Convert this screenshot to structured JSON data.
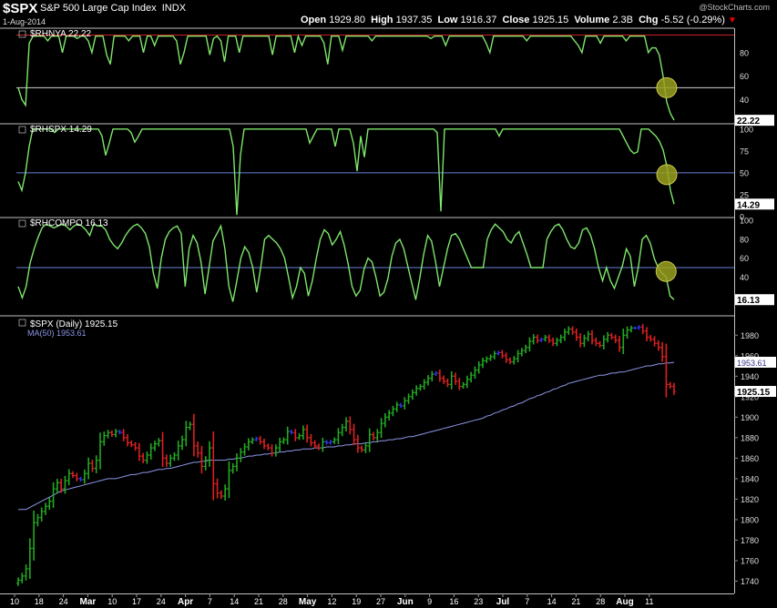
{
  "header": {
    "symbol": "$SPX",
    "description": "S&P 500 Large Cap Index",
    "exchange": "INDX",
    "date": "1-Aug-2014",
    "open_label": "Open",
    "open": "1929.80",
    "high_label": "High",
    "high": "1937.35",
    "low_label": "Low",
    "low": "1916.37",
    "close_label": "Close",
    "close": "1925.15",
    "volume_label": "Volume",
    "volume": "2.3B",
    "chg_label": "Chg",
    "chg": "-5.52 (-0.29%)",
    "brand": "@StockCharts.com"
  },
  "colors": {
    "background": "#000000",
    "indicator_line": "#7ee66b",
    "upper_reference": "#cc2222",
    "panel_border": "#c0c0c0",
    "mid_reference": "#6b7fd8",
    "up_bar": "#22aa22",
    "down_bar": "#dd2020",
    "neutral_bar": "#3333ee",
    "ma_line": "#8c96e6",
    "highlight": "#9aa020"
  },
  "x_axis": {
    "tick_labels": [
      "10",
      "18",
      "24",
      "Mar",
      "10",
      "17",
      "24",
      "Apr",
      "7",
      "14",
      "21",
      "28",
      "May",
      "12",
      "19",
      "27",
      "Jun",
      "9",
      "16",
      "23",
      "Jul",
      "7",
      "14",
      "21",
      "28",
      "Aug",
      "11"
    ]
  },
  "chart_data": [
    {
      "type": "line",
      "title": "$RHNYA 22.22",
      "series": [
        {
          "name": "$RHNYA",
          "last_value": "22.22",
          "values": [
            50,
            40,
            35,
            88,
            94,
            94,
            94,
            94,
            90,
            94,
            94,
            94,
            80,
            94,
            94,
            94,
            92,
            94,
            94,
            90,
            80,
            94,
            94,
            94,
            78,
            70,
            94,
            94,
            94,
            94,
            90,
            94,
            94,
            94,
            80,
            94,
            94,
            86,
            94,
            94,
            94,
            94,
            94,
            90,
            70,
            80,
            94,
            94,
            94,
            94,
            94,
            94,
            78,
            92,
            94,
            90,
            72,
            94,
            94,
            94,
            80,
            94,
            94,
            94,
            94,
            94,
            94,
            94,
            94,
            78,
            94,
            94,
            94,
            94,
            94,
            80,
            94,
            86,
            94,
            94,
            94,
            94,
            94,
            88,
            70,
            94,
            94,
            94,
            82,
            94,
            94,
            94,
            94,
            94,
            94,
            94,
            90,
            94,
            94,
            94,
            94,
            94,
            94,
            94,
            94,
            94,
            94,
            94,
            94,
            94,
            94,
            94,
            92,
            94,
            94,
            94,
            86,
            94,
            94,
            94,
            94,
            94,
            94,
            94,
            94,
            94,
            94,
            88,
            80,
            94,
            94,
            94,
            94,
            94,
            94,
            94,
            94,
            94,
            90,
            94,
            94,
            94,
            94,
            94,
            94,
            94,
            94,
            94,
            94,
            94,
            94,
            90,
            86,
            80,
            94,
            94,
            94,
            94,
            88,
            94,
            94,
            94,
            94,
            94,
            94,
            90,
            94,
            94,
            94,
            94,
            94,
            80,
            84,
            84,
            78,
            60,
            38,
            28,
            22.22
          ]
        }
      ],
      "ylim": [
        20,
        100
      ],
      "y_ticks": [
        "80",
        "60",
        "40"
      ],
      "upper_reference": 95,
      "mid_reference": 50,
      "highlight_value": 50
    },
    {
      "type": "line",
      "title": "$RHSPX 14.29",
      "series": [
        {
          "name": "$RHSPX",
          "last_value": "14.29",
          "values": [
            40,
            30,
            50,
            80,
            100,
            100,
            100,
            100,
            100,
            100,
            96,
            100,
            100,
            100,
            100,
            100,
            100,
            100,
            100,
            100,
            100,
            100,
            100,
            92,
            70,
            84,
            100,
            100,
            100,
            100,
            100,
            96,
            85,
            92,
            100,
            100,
            100,
            100,
            100,
            100,
            100,
            100,
            100,
            100,
            100,
            100,
            100,
            100,
            100,
            100,
            100,
            100,
            100,
            100,
            100,
            100,
            100,
            100,
            100,
            80,
            2,
            70,
            100,
            100,
            100,
            100,
            100,
            100,
            100,
            100,
            100,
            100,
            100,
            100,
            100,
            100,
            100,
            100,
            100,
            100,
            84,
            92,
            100,
            100,
            100,
            100,
            100,
            80,
            100,
            100,
            100,
            100,
            84,
            52,
            92,
            68,
            100,
            100,
            100,
            100,
            100,
            100,
            100,
            100,
            100,
            100,
            100,
            100,
            100,
            100,
            100,
            100,
            100,
            100,
            100,
            96,
            6,
            100,
            100,
            100,
            100,
            100,
            100,
            100,
            100,
            100,
            100,
            100,
            100,
            100,
            100,
            100,
            92,
            100,
            100,
            100,
            100,
            100,
            100,
            100,
            100,
            100,
            100,
            100,
            100,
            100,
            100,
            100,
            100,
            100,
            100,
            100,
            100,
            100,
            100,
            100,
            100,
            100,
            100,
            100,
            100,
            100,
            100,
            100,
            100,
            100,
            92,
            84,
            76,
            72,
            74,
            100,
            100,
            100,
            96,
            92,
            86,
            76,
            58,
            30,
            14.29
          ]
        }
      ],
      "ylim": [
        0,
        105
      ],
      "y_ticks": [
        "100",
        "75",
        "50",
        "25",
        "0"
      ],
      "mid_reference": 50,
      "highlight_value": 48
    },
    {
      "type": "line",
      "title": "$RHCOMPO 16.13",
      "series": [
        {
          "name": "$RHCOMPO",
          "last_value": "16.13",
          "values": [
            30,
            18,
            30,
            55,
            70,
            82,
            92,
            96,
            94,
            92,
            94,
            96,
            94,
            90,
            94,
            96,
            94,
            90,
            84,
            96,
            94,
            94,
            90,
            80,
            74,
            70,
            76,
            84,
            90,
            94,
            96,
            92,
            86,
            72,
            44,
            28,
            60,
            80,
            88,
            92,
            94,
            86,
            30,
            70,
            84,
            76,
            56,
            22,
            50,
            78,
            86,
            94,
            70,
            30,
            14,
            36,
            60,
            72,
            66,
            50,
            24,
            50,
            80,
            84,
            80,
            76,
            70,
            60,
            40,
            18,
            30,
            50,
            44,
            20,
            36,
            60,
            80,
            90,
            86,
            74,
            80,
            88,
            74,
            54,
            30,
            20,
            26,
            48,
            60,
            56,
            40,
            20,
            24,
            38,
            62,
            76,
            80,
            70,
            52,
            34,
            16,
            38,
            64,
            84,
            78,
            56,
            30,
            50,
            70,
            84,
            86,
            80,
            70,
            60,
            50,
            50,
            50,
            50,
            80,
            90,
            96,
            92,
            88,
            80,
            76,
            84,
            88,
            76,
            64,
            50,
            50,
            50,
            50,
            80,
            88,
            94,
            96,
            90,
            80,
            72,
            70,
            76,
            90,
            92,
            84,
            70,
            50,
            36,
            50,
            36,
            28,
            40,
            52,
            70,
            62,
            30,
            50,
            80,
            84,
            76,
            60,
            50,
            44,
            40,
            20,
            16.13
          ]
        }
      ],
      "ylim": [
        0,
        102
      ],
      "y_ticks": [
        "100",
        "80",
        "60",
        "40"
      ],
      "mid_reference": 50,
      "highlight_value": 46
    },
    {
      "type": "bar",
      "title": "$SPX (Daily) 1925.15",
      "ma_label": "MA(50) 1953.61",
      "ma_last": "1953.61",
      "price_last": "1925.15",
      "ylim": [
        1728,
        1998
      ],
      "y_ticks": [
        "1980",
        "1960",
        "1940",
        "1920",
        "1900",
        "1880",
        "1860",
        "1840",
        "1820",
        "1800",
        "1780",
        "1760",
        "1740"
      ],
      "series": [
        {
          "name": "$SPX",
          "values": [
            1741,
            1745,
            1752,
            1772,
            1797,
            1802,
            1808,
            1813,
            1818,
            1830,
            1836,
            1830,
            1838,
            1845,
            1843,
            1840,
            1839,
            1845,
            1855,
            1850,
            1858,
            1876,
            1882,
            1885,
            1883,
            1886,
            1885,
            1880,
            1875,
            1873,
            1870,
            1862,
            1858,
            1863,
            1870,
            1874,
            1877,
            1860,
            1855,
            1860,
            1863,
            1872,
            1878,
            1890,
            1893,
            1872,
            1865,
            1852,
            1858,
            1870,
            1835,
            1826,
            1823,
            1830,
            1848,
            1852,
            1860,
            1866,
            1871,
            1876,
            1878,
            1879,
            1876,
            1872,
            1870,
            1865,
            1870,
            1876,
            1878,
            1886,
            1885,
            1880,
            1882,
            1888,
            1880,
            1875,
            1872,
            1870,
            1876,
            1875,
            1876,
            1878,
            1885,
            1890,
            1896,
            1888,
            1878,
            1870,
            1868,
            1872,
            1883,
            1880,
            1885,
            1894,
            1900,
            1904,
            1908,
            1912,
            1911,
            1916,
            1920,
            1924,
            1928,
            1930,
            1934,
            1938,
            1942,
            1943,
            1938,
            1935,
            1932,
            1940,
            1935,
            1930,
            1932,
            1937,
            1941,
            1946,
            1951,
            1955,
            1957,
            1959,
            1962,
            1963,
            1960,
            1956,
            1954,
            1957,
            1962,
            1965,
            1968,
            1974,
            1978,
            1975,
            1976,
            1978,
            1975,
            1972,
            1975,
            1978,
            1983,
            1986,
            1983,
            1978,
            1972,
            1977,
            1981,
            1975,
            1972,
            1970,
            1976,
            1980,
            1978,
            1975,
            1968,
            1980,
            1985,
            1987,
            1987,
            1988,
            1984,
            1978,
            1976,
            1972,
            1968,
            1959,
            1932,
            1930,
            1925.15
          ]
        },
        {
          "name": "MA(50)",
          "values": [
            1810,
            1810,
            1810,
            1812,
            1814,
            1816,
            1818,
            1820,
            1822,
            1824,
            1826,
            1828,
            1829,
            1830,
            1831,
            1832,
            1833,
            1834,
            1835,
            1836,
            1837,
            1838,
            1839,
            1840,
            1840,
            1840,
            1841,
            1842,
            1843,
            1844,
            1844,
            1845,
            1846,
            1846,
            1847,
            1848,
            1849,
            1849,
            1850,
            1850,
            1851,
            1852,
            1853,
            1854,
            1855,
            1856,
            1856,
            1857,
            1857,
            1858,
            1858,
            1858,
            1858,
            1858,
            1859,
            1859,
            1860,
            1860,
            1861,
            1862,
            1862,
            1863,
            1863,
            1864,
            1864,
            1865,
            1865,
            1866,
            1866,
            1867,
            1867,
            1868,
            1868,
            1869,
            1869,
            1869,
            1870,
            1870,
            1870,
            1871,
            1871,
            1871,
            1872,
            1872,
            1873,
            1873,
            1874,
            1874,
            1874,
            1875,
            1875,
            1876,
            1876,
            1877,
            1877,
            1878,
            1878,
            1879,
            1879,
            1880,
            1881,
            1881,
            1882,
            1883,
            1884,
            1885,
            1886,
            1887,
            1888,
            1889,
            1890,
            1891,
            1892,
            1893,
            1894,
            1895,
            1896,
            1897,
            1898,
            1899,
            1901,
            1902,
            1904,
            1905,
            1907,
            1908,
            1910,
            1911,
            1913,
            1914,
            1916,
            1918,
            1919,
            1921,
            1922,
            1924,
            1925,
            1927,
            1928,
            1930,
            1931,
            1933,
            1934,
            1935,
            1936,
            1937,
            1938,
            1939,
            1940,
            1941,
            1941,
            1942,
            1943,
            1943,
            1944,
            1944,
            1945,
            1946,
            1947,
            1948,
            1949,
            1950,
            1950,
            1951,
            1952,
            1952,
            1953,
            1953,
            1953.61
          ]
        }
      ]
    }
  ]
}
